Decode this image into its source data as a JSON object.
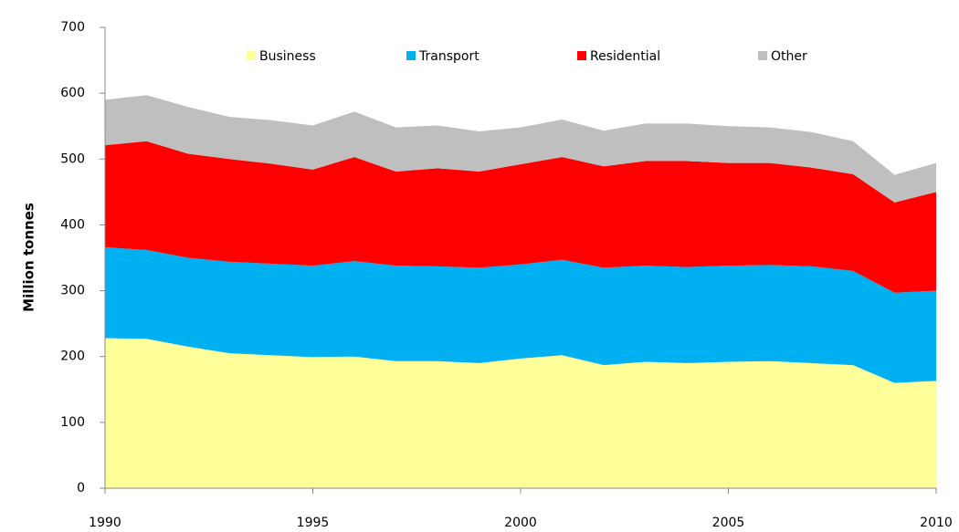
{
  "chart_data": {
    "type": "stacked-area",
    "y_label": "Million tonnes",
    "x": [
      1990,
      1991,
      1992,
      1993,
      1994,
      1995,
      1996,
      1997,
      1998,
      1999,
      2000,
      2001,
      2002,
      2003,
      2004,
      2005,
      2006,
      2007,
      2008,
      2009,
      2010
    ],
    "series": [
      {
        "name": "Business",
        "color": "#ffff99",
        "values": [
          228,
          227,
          215,
          205,
          202,
          199,
          200,
          193,
          193,
          190,
          197,
          202,
          187,
          192,
          190,
          192,
          193,
          190,
          187,
          160,
          163
        ]
      },
      {
        "name": "Transport",
        "color": "#00b0f0",
        "values": [
          138,
          135,
          135,
          139,
          139,
          139,
          145,
          145,
          144,
          145,
          143,
          145,
          148,
          146,
          146,
          146,
          146,
          147,
          143,
          137,
          137
        ]
      },
      {
        "name": "Residential",
        "color": "#ff0000",
        "values": [
          155,
          165,
          158,
          156,
          152,
          146,
          158,
          143,
          149,
          146,
          152,
          156,
          154,
          159,
          161,
          156,
          155,
          150,
          147,
          137,
          150
        ]
      },
      {
        "name": "Other",
        "color": "#bfbfbf",
        "values": [
          69,
          70,
          71,
          64,
          66,
          67,
          69,
          67,
          65,
          61,
          56,
          57,
          54,
          57,
          57,
          56,
          54,
          54,
          50,
          42,
          44
        ]
      }
    ],
    "xlim": [
      1990,
      2010
    ],
    "xticks": [
      1990,
      1995,
      2000,
      2005,
      2010
    ],
    "ylim": [
      0,
      700
    ],
    "yticks": [
      0,
      100,
      200,
      300,
      400,
      500,
      600,
      700
    ],
    "grid": false,
    "legend": "top"
  }
}
